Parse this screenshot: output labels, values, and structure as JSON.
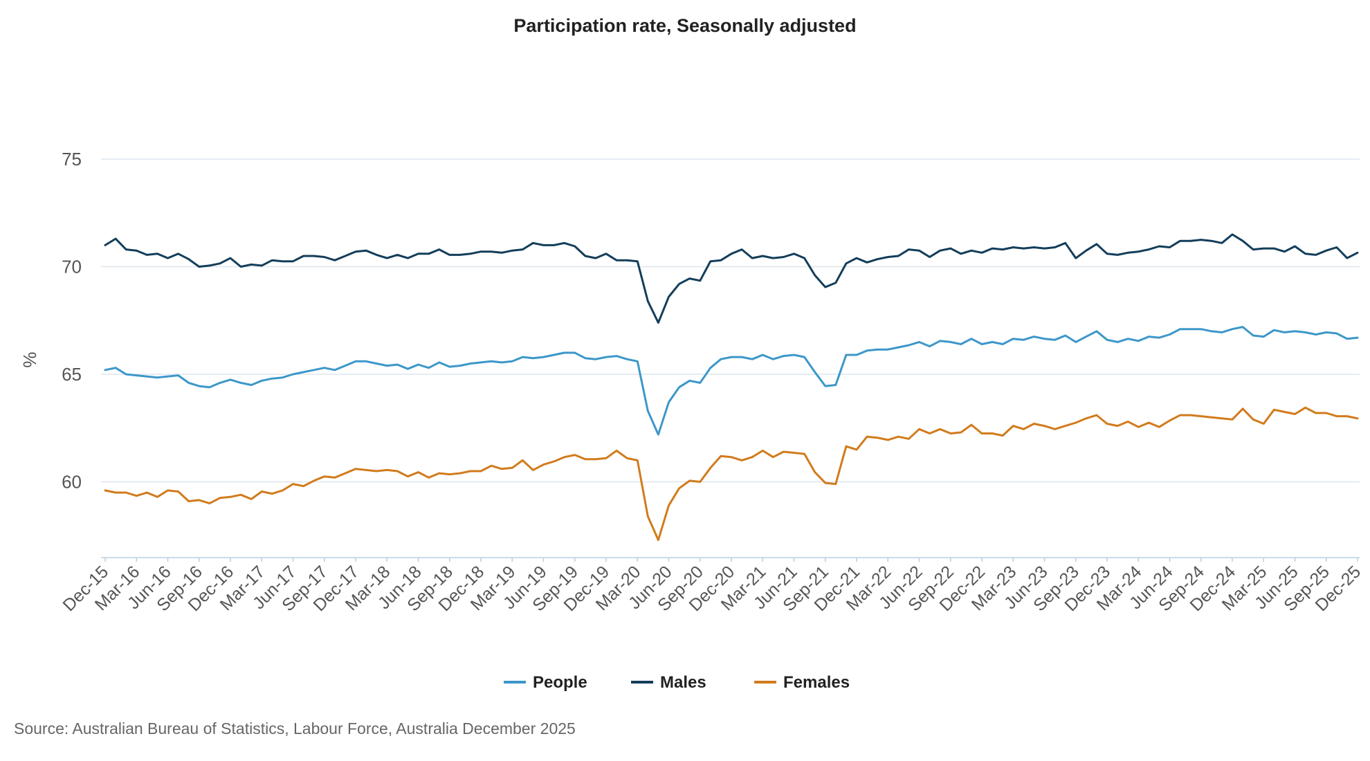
{
  "chart_data": {
    "type": "line",
    "title": "Participation rate, Seasonally adjusted",
    "ylabel": "%",
    "xlabel": "",
    "ylim": [
      56.5,
      77
    ],
    "yticks": [
      60,
      65,
      70,
      75
    ],
    "x_tick_labels": [
      "Dec-15",
      "Mar-16",
      "Jun-16",
      "Sep-16",
      "Dec-16",
      "Mar-17",
      "Jun-17",
      "Sep-17",
      "Dec-17",
      "Mar-18",
      "Jun-18",
      "Sep-18",
      "Dec-18",
      "Mar-19",
      "Jun-19",
      "Sep-19",
      "Dec-19",
      "Mar-20",
      "Jun-20",
      "Sep-20",
      "Dec-20",
      "Mar-21",
      "Jun-21",
      "Sep-21",
      "Dec-21",
      "Mar-22",
      "Jun-22",
      "Sep-22",
      "Dec-22",
      "Mar-23",
      "Jun-23",
      "Sep-23",
      "Dec-23",
      "Mar-24",
      "Jun-24",
      "Sep-24",
      "Dec-24",
      "Mar-25",
      "Jun-25",
      "Sep-25",
      "Dec-25"
    ],
    "x_start": "Dec-15",
    "frequency": "monthly",
    "grid": "horizontal",
    "legend_position": "bottom",
    "series": [
      {
        "name": "People",
        "color": "#3c97c9",
        "values": [
          65.2,
          65.3,
          65.0,
          64.95,
          64.9,
          64.85,
          64.9,
          64.95,
          64.6,
          64.45,
          64.4,
          64.6,
          64.75,
          64.6,
          64.5,
          64.7,
          64.8,
          64.85,
          65.0,
          65.1,
          65.2,
          65.3,
          65.2,
          65.4,
          65.6,
          65.6,
          65.5,
          65.4,
          65.45,
          65.25,
          65.45,
          65.3,
          65.55,
          65.35,
          65.4,
          65.5,
          65.55,
          65.6,
          65.55,
          65.6,
          65.8,
          65.75,
          65.8,
          65.9,
          66.0,
          66.0,
          65.75,
          65.7,
          65.8,
          65.85,
          65.7,
          65.6,
          63.3,
          62.2,
          63.7,
          64.4,
          64.7,
          64.6,
          65.3,
          65.7,
          65.8,
          65.8,
          65.7,
          65.9,
          65.7,
          65.85,
          65.9,
          65.8,
          65.1,
          64.45,
          64.5,
          65.9,
          65.9,
          66.1,
          66.15,
          66.15,
          66.25,
          66.35,
          66.5,
          66.3,
          66.55,
          66.5,
          66.4,
          66.65,
          66.4,
          66.5,
          66.4,
          66.65,
          66.6,
          66.75,
          66.65,
          66.6,
          66.8,
          66.5,
          66.75,
          67.0,
          66.6,
          66.5,
          66.65,
          66.55,
          66.75,
          66.7,
          66.85,
          67.1,
          67.1,
          67.1,
          67.0,
          66.95,
          67.1,
          67.2,
          66.8,
          66.75,
          67.05,
          66.95,
          67.0,
          66.95,
          66.85,
          66.95,
          66.9,
          66.65,
          66.7
        ]
      },
      {
        "name": "Males",
        "color": "#133d5a",
        "values": [
          71.0,
          71.3,
          70.8,
          70.75,
          70.55,
          70.6,
          70.4,
          70.6,
          70.35,
          70.0,
          70.05,
          70.15,
          70.4,
          70.0,
          70.1,
          70.05,
          70.3,
          70.25,
          70.25,
          70.5,
          70.5,
          70.45,
          70.3,
          70.5,
          70.7,
          70.75,
          70.55,
          70.4,
          70.55,
          70.4,
          70.6,
          70.6,
          70.8,
          70.55,
          70.55,
          70.6,
          70.7,
          70.7,
          70.65,
          70.75,
          70.8,
          71.1,
          71.0,
          71.0,
          71.1,
          70.95,
          70.5,
          70.4,
          70.6,
          70.3,
          70.3,
          70.25,
          68.4,
          67.4,
          68.6,
          69.2,
          69.45,
          69.35,
          70.25,
          70.3,
          70.6,
          70.8,
          70.4,
          70.5,
          70.4,
          70.45,
          70.6,
          70.4,
          69.6,
          69.05,
          69.25,
          70.15,
          70.4,
          70.2,
          70.35,
          70.45,
          70.5,
          70.8,
          70.75,
          70.45,
          70.75,
          70.85,
          70.6,
          70.75,
          70.65,
          70.85,
          70.8,
          70.9,
          70.85,
          70.9,
          70.85,
          70.9,
          71.1,
          70.4,
          70.75,
          71.05,
          70.6,
          70.55,
          70.65,
          70.7,
          70.8,
          70.95,
          70.9,
          71.2,
          71.2,
          71.25,
          71.2,
          71.1,
          71.5,
          71.2,
          70.8,
          70.85,
          70.85,
          70.7,
          70.95,
          70.6,
          70.55,
          70.75,
          70.9,
          70.4,
          70.65
        ]
      },
      {
        "name": "Females",
        "color": "#d17b1c",
        "values": [
          59.6,
          59.5,
          59.5,
          59.35,
          59.5,
          59.3,
          59.6,
          59.55,
          59.1,
          59.15,
          59.0,
          59.25,
          59.3,
          59.4,
          59.2,
          59.55,
          59.45,
          59.6,
          59.9,
          59.8,
          60.05,
          60.25,
          60.2,
          60.4,
          60.6,
          60.55,
          60.5,
          60.55,
          60.5,
          60.25,
          60.45,
          60.2,
          60.4,
          60.35,
          60.4,
          60.5,
          60.5,
          60.75,
          60.6,
          60.65,
          61.0,
          60.55,
          60.8,
          60.95,
          61.15,
          61.25,
          61.05,
          61.05,
          61.1,
          61.45,
          61.1,
          61.0,
          58.4,
          57.3,
          58.9,
          59.7,
          60.05,
          60.0,
          60.65,
          61.2,
          61.15,
          61.0,
          61.15,
          61.45,
          61.15,
          61.4,
          61.35,
          61.3,
          60.45,
          59.95,
          59.9,
          61.65,
          61.5,
          62.1,
          62.05,
          61.95,
          62.1,
          62.0,
          62.45,
          62.25,
          62.45,
          62.25,
          62.3,
          62.65,
          62.25,
          62.25,
          62.15,
          62.6,
          62.45,
          62.7,
          62.6,
          62.45,
          62.6,
          62.75,
          62.95,
          63.1,
          62.7,
          62.6,
          62.8,
          62.55,
          62.75,
          62.55,
          62.85,
          63.1,
          63.1,
          63.05,
          63.0,
          62.95,
          62.9,
          63.4,
          62.9,
          62.7,
          63.35,
          63.25,
          63.15,
          63.45,
          63.2,
          63.2,
          63.05,
          63.05,
          62.95
        ]
      }
    ],
    "source": "Source: Australian Bureau of Statistics, Labour Force, Australia December 2025"
  }
}
